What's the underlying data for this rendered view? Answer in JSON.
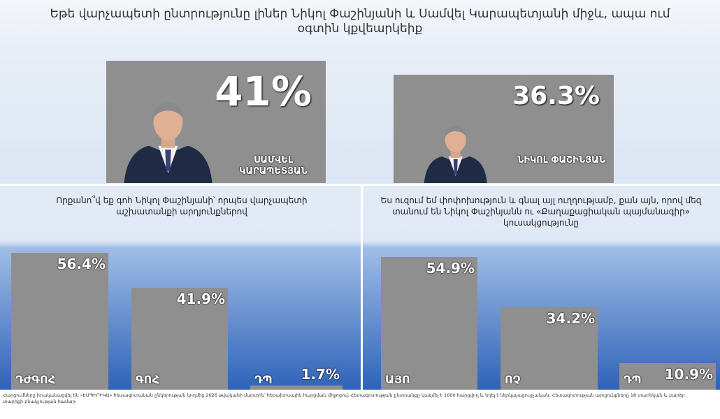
{
  "chart_data": [
    {
      "type": "bar",
      "title": "Եթե վարչապետի ընտրությունը լիներ Նիկոլ Փաշինյանի և Սամվել Կարապետյանի միջև, ապա ում օգտին կքվեարկեիք",
      "categories": [
        "ՍԱՄՎԵԼ ԿԱՐԱՊԵՏՅԱՆ",
        "ՆԻԿՈԼ ՓԱՇԻՆՅԱՆ"
      ],
      "values": [
        41,
        36.3
      ],
      "value_labels": [
        "41%",
        "36.3%"
      ],
      "color": "#8f8f8f"
    },
    {
      "type": "bar",
      "title": "Որքանո՞վ եք գոհ Նիկոլ Փաշինյանի՝ որպես վարչապետի աշխատանքի արդյունքներով",
      "categories": [
        "ԴԺԳՈՀ",
        "ԳՈՀ",
        "ԴՊ"
      ],
      "values": [
        56.4,
        41.9,
        1.7
      ],
      "value_labels": [
        "56.4%",
        "41.9%",
        "1.7%"
      ],
      "color": "#8f8f8f"
    },
    {
      "type": "bar",
      "title": "Ես ուզում եմ փոփոխություն և գնալ այլ ուղղությամբ, քան այն, որով մեզ տանում են Նիկոլ Փաշինյանն ու «Քաղաքացիական պայմանագիր» կուսակցությունը",
      "categories": [
        "ԱՅՈ",
        "ՈՉ",
        "ԴՊ"
      ],
      "values": [
        54.9,
        34.2,
        10.9
      ],
      "value_labels": [
        "54.9%",
        "34.2%",
        "10.9%"
      ],
      "color": "#8f8f8f"
    }
  ],
  "footnote": "Հարցումները իրականացվել են «ԷՄՊԻՐԻԿԱ» հետազոտական ընկերության կողմից 2026 թվականի մարտին՝ հեռախոսային հարցման միջոցով։ Հետազոտության ընտրանքը կազմել է 1600 հարցվող և եղել է ներկայացուցչական։ Հետազոտության արդյունքները 18 տարեկան և բարձր տարիքի բնակչության համար։"
}
